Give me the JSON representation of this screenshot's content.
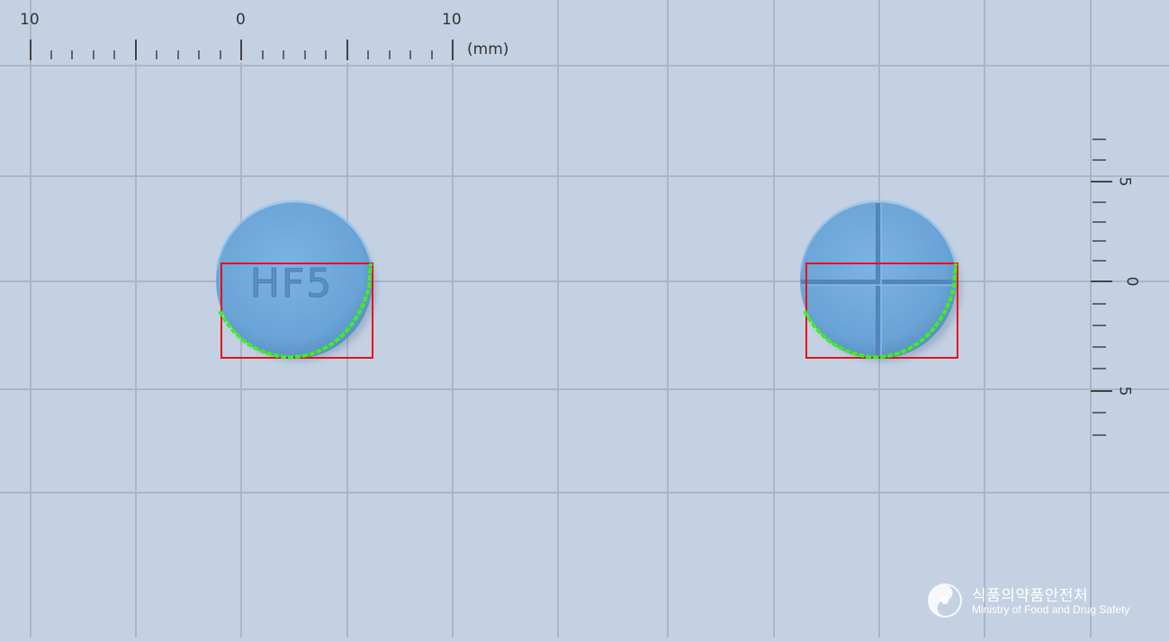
{
  "top_ruler": {
    "label_left": "10",
    "label_zero": "0",
    "label_right": "10",
    "unit": "(mm)"
  },
  "side_ruler": {
    "label_top": "5",
    "label_zero": "0",
    "label_bottom": "5"
  },
  "tablets": {
    "color": "#6fa6d8",
    "front_imprint": "HF5",
    "back_marking": "cross score"
  },
  "colors": {
    "background": "#c4d1e3",
    "grid": "#a8b6c9",
    "bounding_box": "#e8101a",
    "contour": "#3cf020"
  },
  "watermark": {
    "korean": "식품의약품안전처",
    "english": "Ministry of Food and Drug Safety"
  }
}
